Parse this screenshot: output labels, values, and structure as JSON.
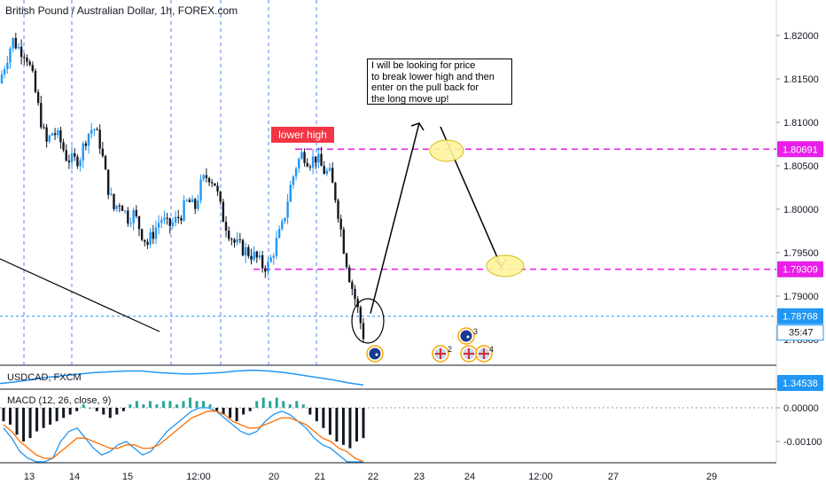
{
  "header": {
    "symbol_title": "British Pound / Australian Dollar, 1h, FOREX.com"
  },
  "annotations": {
    "note_text": "I will be looking for price\nto break lower high and then\nenter on the pull back for\nthe long move up!",
    "lower_high_label": "lower high"
  },
  "price_axis": {
    "ticks": [
      "1.82000",
      "1.81500",
      "1.81000",
      "1.80500",
      "1.80000",
      "1.79500",
      "1.79000",
      "1.78500"
    ],
    "badge_resistance": "1.80691",
    "badge_support": "1.79309",
    "badge_current": "1.78768",
    "countdown": "35:47"
  },
  "time_axis": {
    "ticks": [
      "13",
      "14",
      "15",
      "12:00",
      "20",
      "21",
      "22",
      "23",
      "24",
      "12:00",
      "27",
      "29"
    ]
  },
  "usdcad_panel": {
    "label": "USDCAD, FXCM",
    "value_badge": "1.34538"
  },
  "macd_panel": {
    "label": "MACD (12, 26, close, 9)",
    "ticks": [
      "0.00000",
      "-0.00100"
    ]
  },
  "event_icons": {
    "count_2": "2",
    "count_3": "3",
    "count_4": "4"
  },
  "colors": {
    "up_candle": "#2196f3",
    "down_candle": "#131722",
    "level_line": "#e91ee9",
    "current_price": "#2196f3",
    "label_red": "#f23645",
    "macd_line": "#2196f3",
    "signal_line": "#ff6d00",
    "histogram_up": "#26a69a",
    "usdcad_line": "#2196f3",
    "highlight": "#fff59d"
  },
  "chart_data": {
    "type": "candlestick",
    "symbol": "GBPAUD",
    "timeframe": "1h",
    "ylim": [
      1.7825,
      1.8225
    ],
    "levels": {
      "lower_high": 1.80691,
      "support": 1.79309,
      "current": 1.78768
    },
    "price_path": [
      [
        0,
        1.8145
      ],
      [
        1,
        1.817
      ],
      [
        2,
        1.8195
      ],
      [
        3,
        1.8185
      ],
      [
        4,
        1.818
      ],
      [
        5,
        1.815
      ],
      [
        6,
        1.811
      ],
      [
        7,
        1.8075
      ],
      [
        8,
        1.809
      ],
      [
        9,
        1.808
      ],
      [
        10,
        1.806
      ],
      [
        11,
        1.8055
      ],
      [
        12,
        1.806
      ],
      [
        13,
        1.8085
      ],
      [
        14,
        1.8095
      ],
      [
        15,
        1.8075
      ],
      [
        16,
        1.803
      ],
      [
        17,
        1.8
      ],
      [
        18,
        1.801
      ],
      [
        19,
        1.799
      ],
      [
        20,
        1.7995
      ],
      [
        21,
        1.7975
      ],
      [
        22,
        1.796
      ],
      [
        23,
        1.7975
      ],
      [
        24,
        1.799
      ],
      [
        25,
        1.798
      ],
      [
        26,
        1.7985
      ],
      [
        27,
        1.7995
      ],
      [
        28,
        1.801
      ],
      [
        29,
        1.8
      ],
      [
        30,
        1.803
      ],
      [
        31,
        1.804
      ],
      [
        32,
        1.803
      ],
      [
        33,
        1.7995
      ],
      [
        34,
        1.7975
      ],
      [
        35,
        1.796
      ],
      [
        36,
        1.7955
      ],
      [
        37,
        1.795
      ],
      [
        38,
        1.7945
      ],
      [
        39,
        1.7935
      ],
      [
        40,
        1.7935
      ],
      [
        41,
        1.796
      ],
      [
        42,
        1.798
      ],
      [
        43,
        1.802
      ],
      [
        44,
        1.805
      ],
      [
        45,
        1.8065
      ],
      [
        46,
        1.8055
      ],
      [
        47,
        1.806
      ],
      [
        48,
        1.8045
      ],
      [
        49,
        1.804
      ],
      [
        50,
        1.801
      ],
      [
        51,
        1.796
      ],
      [
        52,
        1.792
      ],
      [
        53,
        1.789
      ],
      [
        54,
        1.7855
      ]
    ],
    "projection": [
      [
        1.788,
        1.8099
      ],
      [
        1.8095,
        1.7933
      ]
    ],
    "macd": {
      "histogram": [
        -0.0004,
        -0.0005,
        -0.0008,
        -0.001,
        -0.0009,
        -0.0007,
        -0.0006,
        -0.0005,
        -0.0004,
        -0.0003,
        -0.0002,
        -0.0001,
        0.0001,
        0.0,
        -0.0001,
        -0.0002,
        -0.0003,
        -0.0002,
        -0.0001,
        0.0001,
        0.0002,
        0.0001,
        0.0002,
        0.0001,
        0.0002,
        0.0002,
        0.0001,
        0.0002,
        0.0003,
        0.0002,
        0.0002,
        0.0001,
        -0.0001,
        -0.0002,
        -0.0003,
        -0.0004,
        -0.0002,
        -0.0001,
        0.0002,
        0.0003,
        0.0002,
        0.0003,
        0.0002,
        0.0001,
        0.0002,
        0.0001,
        -0.0002,
        -0.0004,
        -0.0006,
        -0.0008,
        -0.001,
        -0.0011,
        -0.0012,
        -0.001,
        -0.0009
      ],
      "macd_line": [
        -0.0006,
        -0.0009,
        -0.0013,
        -0.0015,
        -0.0016,
        -0.0017,
        -0.0015,
        -0.001,
        -0.0007,
        -0.0006,
        -0.0009,
        -0.0012,
        -0.0014,
        -0.0013,
        -0.0011,
        -0.001,
        -0.0012,
        -0.0014,
        -0.0013,
        -0.001,
        -0.0007,
        -0.0005,
        -0.0003,
        -0.0001,
        0.0,
        0.0,
        -0.0001,
        -0.0003,
        -0.0005,
        -0.0007,
        -0.0008,
        -0.0007,
        -0.0004,
        -0.0002,
        -0.0001,
        -0.0002,
        -0.0004,
        -0.0006,
        -0.0009,
        -0.0011,
        -0.0012,
        -0.0014,
        -0.0016,
        -0.0017,
        -0.0016
      ],
      "signal_line": [
        -0.0005,
        -0.0007,
        -0.001,
        -0.0012,
        -0.0014,
        -0.0015,
        -0.0015,
        -0.0013,
        -0.0011,
        -0.0009,
        -0.0009,
        -0.001,
        -0.0011,
        -0.0012,
        -0.0012,
        -0.0011,
        -0.0011,
        -0.0012,
        -0.0012,
        -0.0011,
        -0.0009,
        -0.0007,
        -0.0005,
        -0.0003,
        -0.0002,
        -0.0001,
        -0.0001,
        -0.0002,
        -0.0004,
        -0.0005,
        -0.0006,
        -0.0006,
        -0.0005,
        -0.0004,
        -0.0003,
        -0.0003,
        -0.0004,
        -0.0005,
        -0.0007,
        -0.0009,
        -0.001,
        -0.0012,
        -0.0013,
        -0.0015,
        -0.0016
      ]
    },
    "usdcad": [
      1.342,
      1.3422,
      1.3425,
      1.3428,
      1.343,
      1.3432,
      1.3434,
      1.3435,
      1.3436,
      1.3436,
      1.3434,
      1.3433,
      1.3432,
      1.3433,
      1.3434,
      1.3436,
      1.3437,
      1.3436,
      1.3434,
      1.3431,
      1.3428,
      1.3425,
      1.3421,
      1.3418
    ]
  }
}
